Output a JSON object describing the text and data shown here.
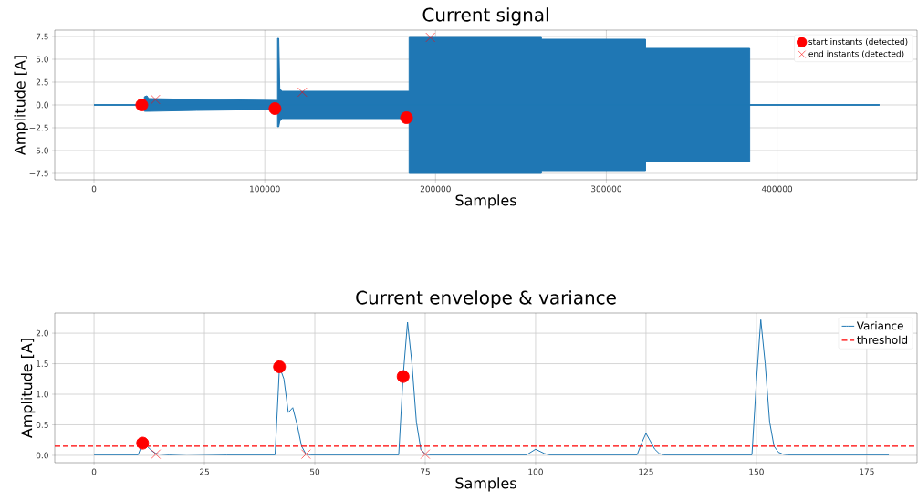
{
  "chart_data": [
    {
      "type": "line",
      "title": "Current signal",
      "xlabel": "Samples",
      "ylabel": "Amplitude [A]",
      "xlim": [
        -23000,
        482000
      ],
      "ylim": [
        -8.2,
        8.2
      ],
      "xticks": [
        0,
        100000,
        200000,
        300000,
        400000
      ],
      "yticks": [
        {
          "value": -7.5,
          "label": "−7.5"
        },
        {
          "value": -5,
          "label": "−5.0"
        },
        {
          "value": -2.5,
          "label": "−2.5"
        },
        {
          "value": 0,
          "label": "0.0"
        },
        {
          "value": 2.5,
          "label": "2.5"
        },
        {
          "value": 5,
          "label": "5.0"
        },
        {
          "value": 7.5,
          "label": "7.5"
        }
      ],
      "grid": true,
      "legend": "top right",
      "series": [
        {
          "type": "area",
          "color": "#1f77b4",
          "marker": "none",
          "x": [
            0,
            29500,
            29500,
            31000,
            32000,
            60000,
            107500,
            107500,
            108200,
            108800,
            110000,
            184500,
            184500,
            262000,
            262000,
            323000,
            323000,
            384000,
            384000,
            460000
          ],
          "values": [
            0.0,
            0.0,
            0.9,
            1.0,
            0.7,
            0.6,
            0.5,
            7.3,
            7.3,
            1.8,
            1.5,
            1.5,
            7.5,
            7.5,
            7.2,
            7.2,
            6.2,
            6.2,
            0.0,
            0.0
          ]
        },
        {
          "type": "area",
          "color": "#1f77b4",
          "marker": "none",
          "x": [
            0,
            29500,
            29500,
            31000,
            32000,
            60000,
            107500,
            107500,
            108200,
            108800,
            110000,
            184500,
            184500,
            262000,
            262000,
            323000,
            323000,
            384000,
            384000,
            460000
          ],
          "values": [
            0.0,
            0.0,
            -0.7,
            -0.7,
            -0.7,
            -0.6,
            -0.5,
            -2.4,
            -2.4,
            -1.8,
            -1.5,
            -1.5,
            -7.5,
            -7.5,
            -7.2,
            -7.2,
            -6.2,
            -6.2,
            0.0,
            0.0
          ]
        },
        {
          "type": "scatter",
          "name": "start instants (detected)",
          "color": "#ff0000",
          "marker": "circle",
          "x": [
            28000,
            106000,
            183000
          ],
          "values": [
            0.0,
            -0.4,
            -1.4
          ]
        },
        {
          "type": "scatter",
          "name": "end instants (detected)",
          "color": "#ff0000",
          "marker": "cross",
          "x": [
            36000,
            122000,
            197000
          ],
          "values": [
            0.6,
            1.4,
            7.4
          ]
        }
      ]
    },
    {
      "type": "line",
      "title": "Current envelope & variance",
      "xlabel": "Samples",
      "ylabel": "Amplitude [A]",
      "xlim": [
        -8.9,
        186.4
      ],
      "ylim": [
        -0.12,
        2.33
      ],
      "xticks": [
        0,
        25,
        50,
        75,
        100,
        125,
        150,
        175
      ],
      "yticks": [
        {
          "value": 0,
          "label": "0.0"
        },
        {
          "value": 0.5,
          "label": "0.5"
        },
        {
          "value": 1,
          "label": "1.0"
        },
        {
          "value": 1.5,
          "label": "1.5"
        },
        {
          "value": 2,
          "label": "2.0"
        }
      ],
      "grid": true,
      "legend": "top right",
      "ref_lines": [
        {
          "axis": "y",
          "value": 0.15,
          "label": "threshold",
          "color": "#ff0000",
          "line_style": "dashed"
        }
      ],
      "series": [
        {
          "type": "line",
          "name": "Variance",
          "color": "#1f77b4",
          "marker": "none",
          "x": [
            0,
            10,
            11,
            12,
            13,
            14,
            15,
            17,
            21,
            30,
            41,
            42,
            43,
            44,
            45,
            46,
            47,
            48,
            49,
            69,
            70,
            71,
            72,
            73,
            74,
            75,
            76,
            98,
            100,
            102,
            103,
            123,
            124,
            125,
            127,
            128,
            129,
            149,
            150,
            151,
            152,
            153,
            154,
            155,
            156,
            157,
            180
          ],
          "values": [
            0.01,
            0.01,
            0.2,
            0.15,
            0.08,
            0.03,
            0.02,
            0.01,
            0.02,
            0.01,
            0.01,
            1.45,
            1.25,
            0.7,
            0.78,
            0.5,
            0.15,
            0.02,
            0.01,
            0.01,
            1.3,
            2.18,
            1.5,
            0.55,
            0.1,
            0.02,
            0.01,
            0.01,
            0.1,
            0.03,
            0.01,
            0.01,
            0.2,
            0.36,
            0.1,
            0.03,
            0.01,
            0.01,
            1.2,
            2.22,
            1.5,
            0.55,
            0.15,
            0.05,
            0.02,
            0.01,
            0.01
          ]
        },
        {
          "type": "scatter",
          "color": "#ff0000",
          "marker": "circle",
          "x": [
            11,
            42,
            70
          ],
          "values": [
            0.2,
            1.45,
            1.29
          ]
        },
        {
          "type": "scatter",
          "color": "#ff0000",
          "marker": "cross",
          "x": [
            14,
            48,
            75
          ],
          "values": [
            0.02,
            0.02,
            0.02
          ]
        }
      ]
    }
  ]
}
